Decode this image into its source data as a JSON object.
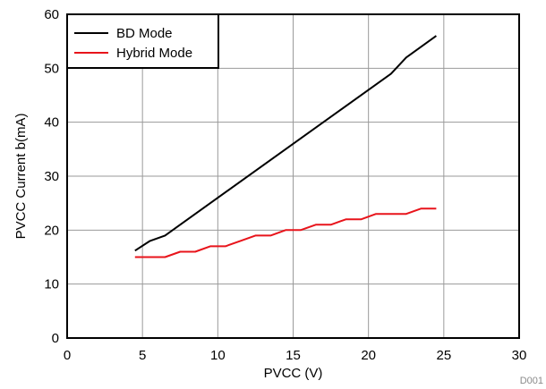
{
  "chart_data": {
    "type": "line",
    "xlabel": "PVCC (V)",
    "ylabel": "PVCC Current b(mA)",
    "xlim": [
      0,
      30
    ],
    "ylim": [
      0,
      60
    ],
    "xticks": [
      0,
      5,
      10,
      15,
      20,
      25,
      30
    ],
    "yticks": [
      0,
      10,
      20,
      30,
      40,
      50,
      60
    ],
    "grid": true,
    "legend_position": "top-left",
    "series": [
      {
        "name": "BD Mode",
        "color": "#000000",
        "x": [
          4.5,
          5.5,
          6.5,
          21.5,
          22.5,
          24.5
        ],
        "y": [
          16.2,
          18.0,
          19.0,
          49.0,
          52.0,
          56.0
        ]
      },
      {
        "name": "Hybrid Mode",
        "color": "#e8141b",
        "x": [
          4.5,
          5.5,
          6.5,
          7.5,
          8.5,
          9.5,
          10.5,
          11.5,
          12.5,
          13.5,
          14.5,
          15.5,
          16.5,
          17.5,
          18.5,
          19.5,
          20.5,
          21.5,
          22.5,
          23.5,
          24.5
        ],
        "y": [
          15,
          15,
          15,
          16,
          16,
          17,
          17,
          18,
          19,
          19,
          20,
          20,
          21,
          21,
          22,
          22,
          23,
          23,
          23,
          24,
          24
        ]
      }
    ],
    "footnote": "D001"
  }
}
